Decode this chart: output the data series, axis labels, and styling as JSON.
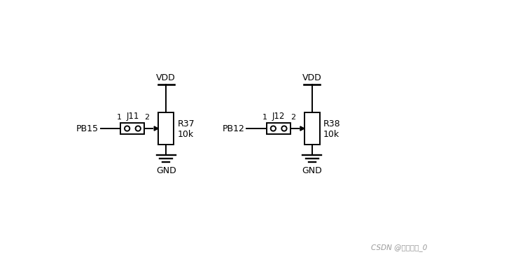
{
  "bg_color": "#ffffff",
  "line_color": "#000000",
  "text_color": "#000000",
  "figsize": [
    7.3,
    3.68
  ],
  "dpi": 100,
  "circuits": [
    {
      "ox": 2.55,
      "oy": 3.5,
      "label_pin": "PB15",
      "label_j": "J11",
      "label_r": "R37\n10k",
      "label_vdd": "VDD",
      "label_gnd": "GND"
    },
    {
      "ox": 6.55,
      "oy": 3.5,
      "label_pin": "PB12",
      "label_j": "J12",
      "label_r": "R38\n10k",
      "label_vdd": "VDD",
      "label_gnd": "GND"
    }
  ],
  "watermark": "CSDN @勾栅听曲_0"
}
